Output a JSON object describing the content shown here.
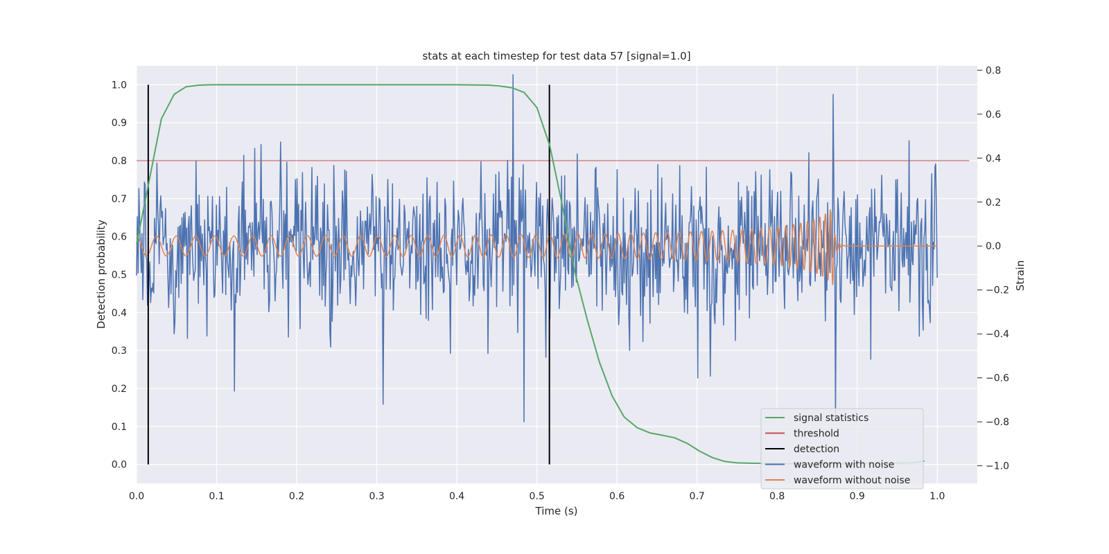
{
  "chart_data": {
    "type": "line",
    "title": "stats at each timestep for test data 57 [signal=1.0]",
    "xlabel": "Time (s)",
    "ylabel": "Detection probability",
    "y2label": "Strain",
    "xlim": [
      0.0,
      1.05
    ],
    "ylim": [
      -0.05,
      1.05
    ],
    "y2lim": [
      -1.08,
      0.82
    ],
    "xticks": [
      0.0,
      0.1,
      0.2,
      0.3,
      0.4,
      0.5,
      0.6,
      0.7,
      0.8,
      0.9,
      1.0
    ],
    "xtick_labels": [
      "0.0",
      "0.1",
      "0.2",
      "0.3",
      "0.4",
      "0.5",
      "0.6",
      "0.7",
      "0.8",
      "0.9",
      "1.0"
    ],
    "yticks": [
      0.0,
      0.1,
      0.2,
      0.3,
      0.4,
      0.5,
      0.6,
      0.7,
      0.8,
      0.9,
      1.0
    ],
    "ytick_labels": [
      "0.0",
      "0.1",
      "0.2",
      "0.3",
      "0.4",
      "0.5",
      "0.6",
      "0.7",
      "0.8",
      "0.9",
      "1.0"
    ],
    "y2ticks": [
      -1.0,
      -0.8,
      -0.6,
      -0.4,
      -0.2,
      0.0,
      0.2,
      0.4,
      0.6,
      0.8
    ],
    "y2tick_labels": [
      "−1.0",
      "−0.8",
      "−0.6",
      "−0.4",
      "−0.2",
      "0.0",
      "0.2",
      "0.4",
      "0.6",
      "0.8"
    ],
    "grid": true,
    "legend_position": "lower-right",
    "colors": {
      "plot_bg": "#eaeaf2",
      "grid": "#ffffff",
      "signal_statistics": "#55a868",
      "threshold": "#c44e52",
      "detection": "#000000",
      "waveform_with_noise": "#4c72b0",
      "waveform_without_noise": "#dd8452"
    },
    "series": [
      {
        "name": "signal statistics",
        "axis": "left",
        "x": [
          0.0,
          0.016,
          0.031,
          0.047,
          0.062,
          0.078,
          0.094,
          0.2,
          0.3,
          0.4,
          0.44,
          0.453,
          0.469,
          0.484,
          0.5,
          0.516,
          0.531,
          0.547,
          0.563,
          0.578,
          0.594,
          0.609,
          0.625,
          0.641,
          0.656,
          0.672,
          0.688,
          0.703,
          0.719,
          0.734,
          0.75,
          0.766,
          0.8,
          0.9,
          0.969,
          0.984
        ],
        "y": [
          0.58,
          0.75,
          0.91,
          0.975,
          0.995,
          0.999,
          1.0,
          1.0,
          1.0,
          1.0,
          0.999,
          0.997,
          0.992,
          0.98,
          0.94,
          0.84,
          0.69,
          0.51,
          0.38,
          0.27,
          0.18,
          0.125,
          0.097,
          0.083,
          0.077,
          0.07,
          0.055,
          0.035,
          0.018,
          0.008,
          0.004,
          0.003,
          0.002,
          0.002,
          0.004,
          0.009
        ]
      },
      {
        "name": "threshold",
        "axis": "left",
        "x": [
          0.0,
          1.04
        ],
        "y": [
          0.8,
          0.8
        ]
      },
      {
        "name": "detection",
        "axis": "left",
        "vlines": [
          0.0146,
          0.5156
        ],
        "ymin": 0.0,
        "ymax": 1.0
      },
      {
        "name": "waveform with noise",
        "axis": "right",
        "x_range": [
          0.0,
          1.0
        ],
        "sample_count": 1024,
        "amplitude_sd": 0.18,
        "annotated_extremes": [
          {
            "x": 0.47,
            "y": 0.78
          },
          {
            "x": 0.484,
            "y": -0.8
          },
          {
            "x": 0.308,
            "y": -0.72
          },
          {
            "x": 0.122,
            "y": -0.66
          },
          {
            "x": 0.87,
            "y": 0.69
          },
          {
            "x": 0.873,
            "y": -0.78
          }
        ]
      },
      {
        "name": "waveform without noise",
        "axis": "right",
        "x_range": [
          0.0,
          1.0
        ],
        "merger_time": 0.87,
        "initial_amplitude": 0.045,
        "peak_amplitude": 0.18,
        "initial_frequency_hz": 40,
        "final_frequency_hz": 180,
        "post_merger_value": 0.0
      }
    ]
  }
}
